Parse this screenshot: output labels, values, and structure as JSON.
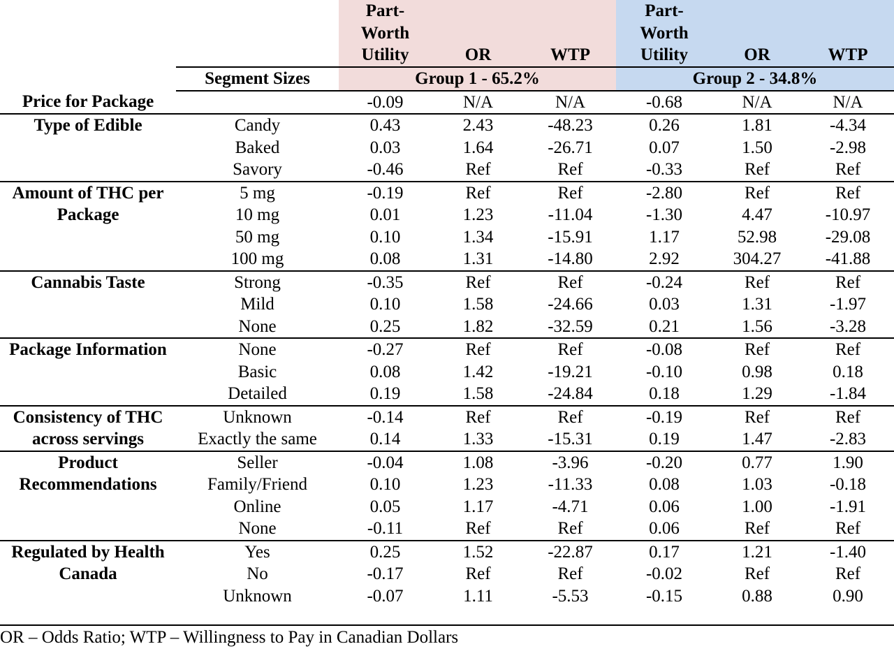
{
  "header": {
    "segment_sizes": "Segment Sizes",
    "col_labels": [
      "Part-Worth Utility",
      "OR",
      "WTP",
      "Part-Worth Utility",
      "OR",
      "WTP"
    ],
    "pwu_lines": [
      "Part-",
      "Worth",
      "Utility"
    ],
    "group1": "Group 1 - 65.2%",
    "group2": "Group 2 - 34.8%"
  },
  "colors": {
    "group1_bg": "#f2dcdb",
    "group2_bg": "#c6d9f0"
  },
  "rows": [
    {
      "attr": "Price for Package",
      "levels": [
        {
          "level": "",
          "v": [
            "-0.09",
            "N/A",
            "N/A",
            "-0.68",
            "N/A",
            "N/A"
          ]
        }
      ]
    },
    {
      "attr": "Type of Edible",
      "levels": [
        {
          "level": "Candy",
          "v": [
            "0.43",
            "2.43",
            "-48.23",
            "0.26",
            "1.81",
            "-4.34"
          ]
        },
        {
          "level": "Baked",
          "v": [
            "0.03",
            "1.64",
            "-26.71",
            "0.07",
            "1.50",
            "-2.98"
          ]
        },
        {
          "level": "Savory",
          "v": [
            "-0.46",
            "Ref",
            "Ref",
            "-0.33",
            "Ref",
            "Ref"
          ]
        }
      ]
    },
    {
      "attr": "Amount of THC per Package",
      "levels": [
        {
          "level": "5 mg",
          "v": [
            "-0.19",
            "Ref",
            "Ref",
            "-2.80",
            "Ref",
            "Ref"
          ]
        },
        {
          "level": "10 mg",
          "v": [
            "0.01",
            "1.23",
            "-11.04",
            "-1.30",
            "4.47",
            "-10.97"
          ]
        },
        {
          "level": "50 mg",
          "v": [
            "0.10",
            "1.34",
            "-15.91",
            "1.17",
            "52.98",
            "-29.08"
          ]
        },
        {
          "level": "100 mg",
          "v": [
            "0.08",
            "1.31",
            "-14.80",
            "2.92",
            "304.27",
            "-41.88"
          ]
        }
      ]
    },
    {
      "attr": "Cannabis Taste",
      "levels": [
        {
          "level": "Strong",
          "v": [
            "-0.35",
            "Ref",
            "Ref",
            "-0.24",
            "Ref",
            "Ref"
          ]
        },
        {
          "level": "Mild",
          "v": [
            "0.10",
            "1.58",
            "-24.66",
            "0.03",
            "1.31",
            "-1.97"
          ]
        },
        {
          "level": "None",
          "v": [
            "0.25",
            "1.82",
            "-32.59",
            "0.21",
            "1.56",
            "-3.28"
          ]
        }
      ]
    },
    {
      "attr": "Package Information",
      "levels": [
        {
          "level": "None",
          "v": [
            "-0.27",
            "Ref",
            "Ref",
            "-0.08",
            "Ref",
            "Ref"
          ]
        },
        {
          "level": "Basic",
          "v": [
            "0.08",
            "1.42",
            "-19.21",
            "-0.10",
            "0.98",
            "0.18"
          ]
        },
        {
          "level": "Detailed",
          "v": [
            "0.19",
            "1.58",
            "-24.84",
            "0.18",
            "1.29",
            "-1.84"
          ]
        }
      ]
    },
    {
      "attr": "Consistency of THC across servings",
      "levels": [
        {
          "level": "Unknown",
          "v": [
            "-0.14",
            "Ref",
            "Ref",
            "-0.19",
            "Ref",
            "Ref"
          ]
        },
        {
          "level": "Exactly the same",
          "v": [
            "0.14",
            "1.33",
            "-15.31",
            "0.19",
            "1.47",
            "-2.83"
          ]
        },
        {
          "level": "",
          "v": [
            "",
            "",
            "",
            "",
            "",
            ""
          ]
        }
      ]
    },
    {
      "attr": "Product Recommendations",
      "levels": [
        {
          "level": "Seller",
          "v": [
            "-0.04",
            "1.08",
            "-3.96",
            "-0.20",
            "0.77",
            "1.90"
          ]
        },
        {
          "level": "Family/Friend",
          "v": [
            "0.10",
            "1.23",
            "-11.33",
            "0.08",
            "1.03",
            "-0.18"
          ]
        },
        {
          "level": "Online",
          "v": [
            "0.05",
            "1.17",
            "-4.71",
            "0.06",
            "1.00",
            "-1.91"
          ]
        },
        {
          "level": "None",
          "v": [
            "-0.11",
            "Ref",
            "Ref",
            "0.06",
            "Ref",
            "Ref"
          ]
        }
      ]
    },
    {
      "attr": "Regulated by Health Canada",
      "levels": [
        {
          "level": "Yes",
          "v": [
            "0.25",
            "1.52",
            "-22.87",
            "0.17",
            "1.21",
            "-1.40"
          ]
        },
        {
          "level": "No",
          "v": [
            "-0.17",
            "Ref",
            "Ref",
            "-0.02",
            "Ref",
            "Ref"
          ]
        },
        {
          "level": "Unknown",
          "v": [
            "-0.07",
            "1.11",
            "-5.53",
            "-0.15",
            "0.88",
            "0.90"
          ]
        }
      ]
    }
  ],
  "footnote": "OR – Odds Ratio; WTP – Willingness to Pay in Canadian Dollars"
}
